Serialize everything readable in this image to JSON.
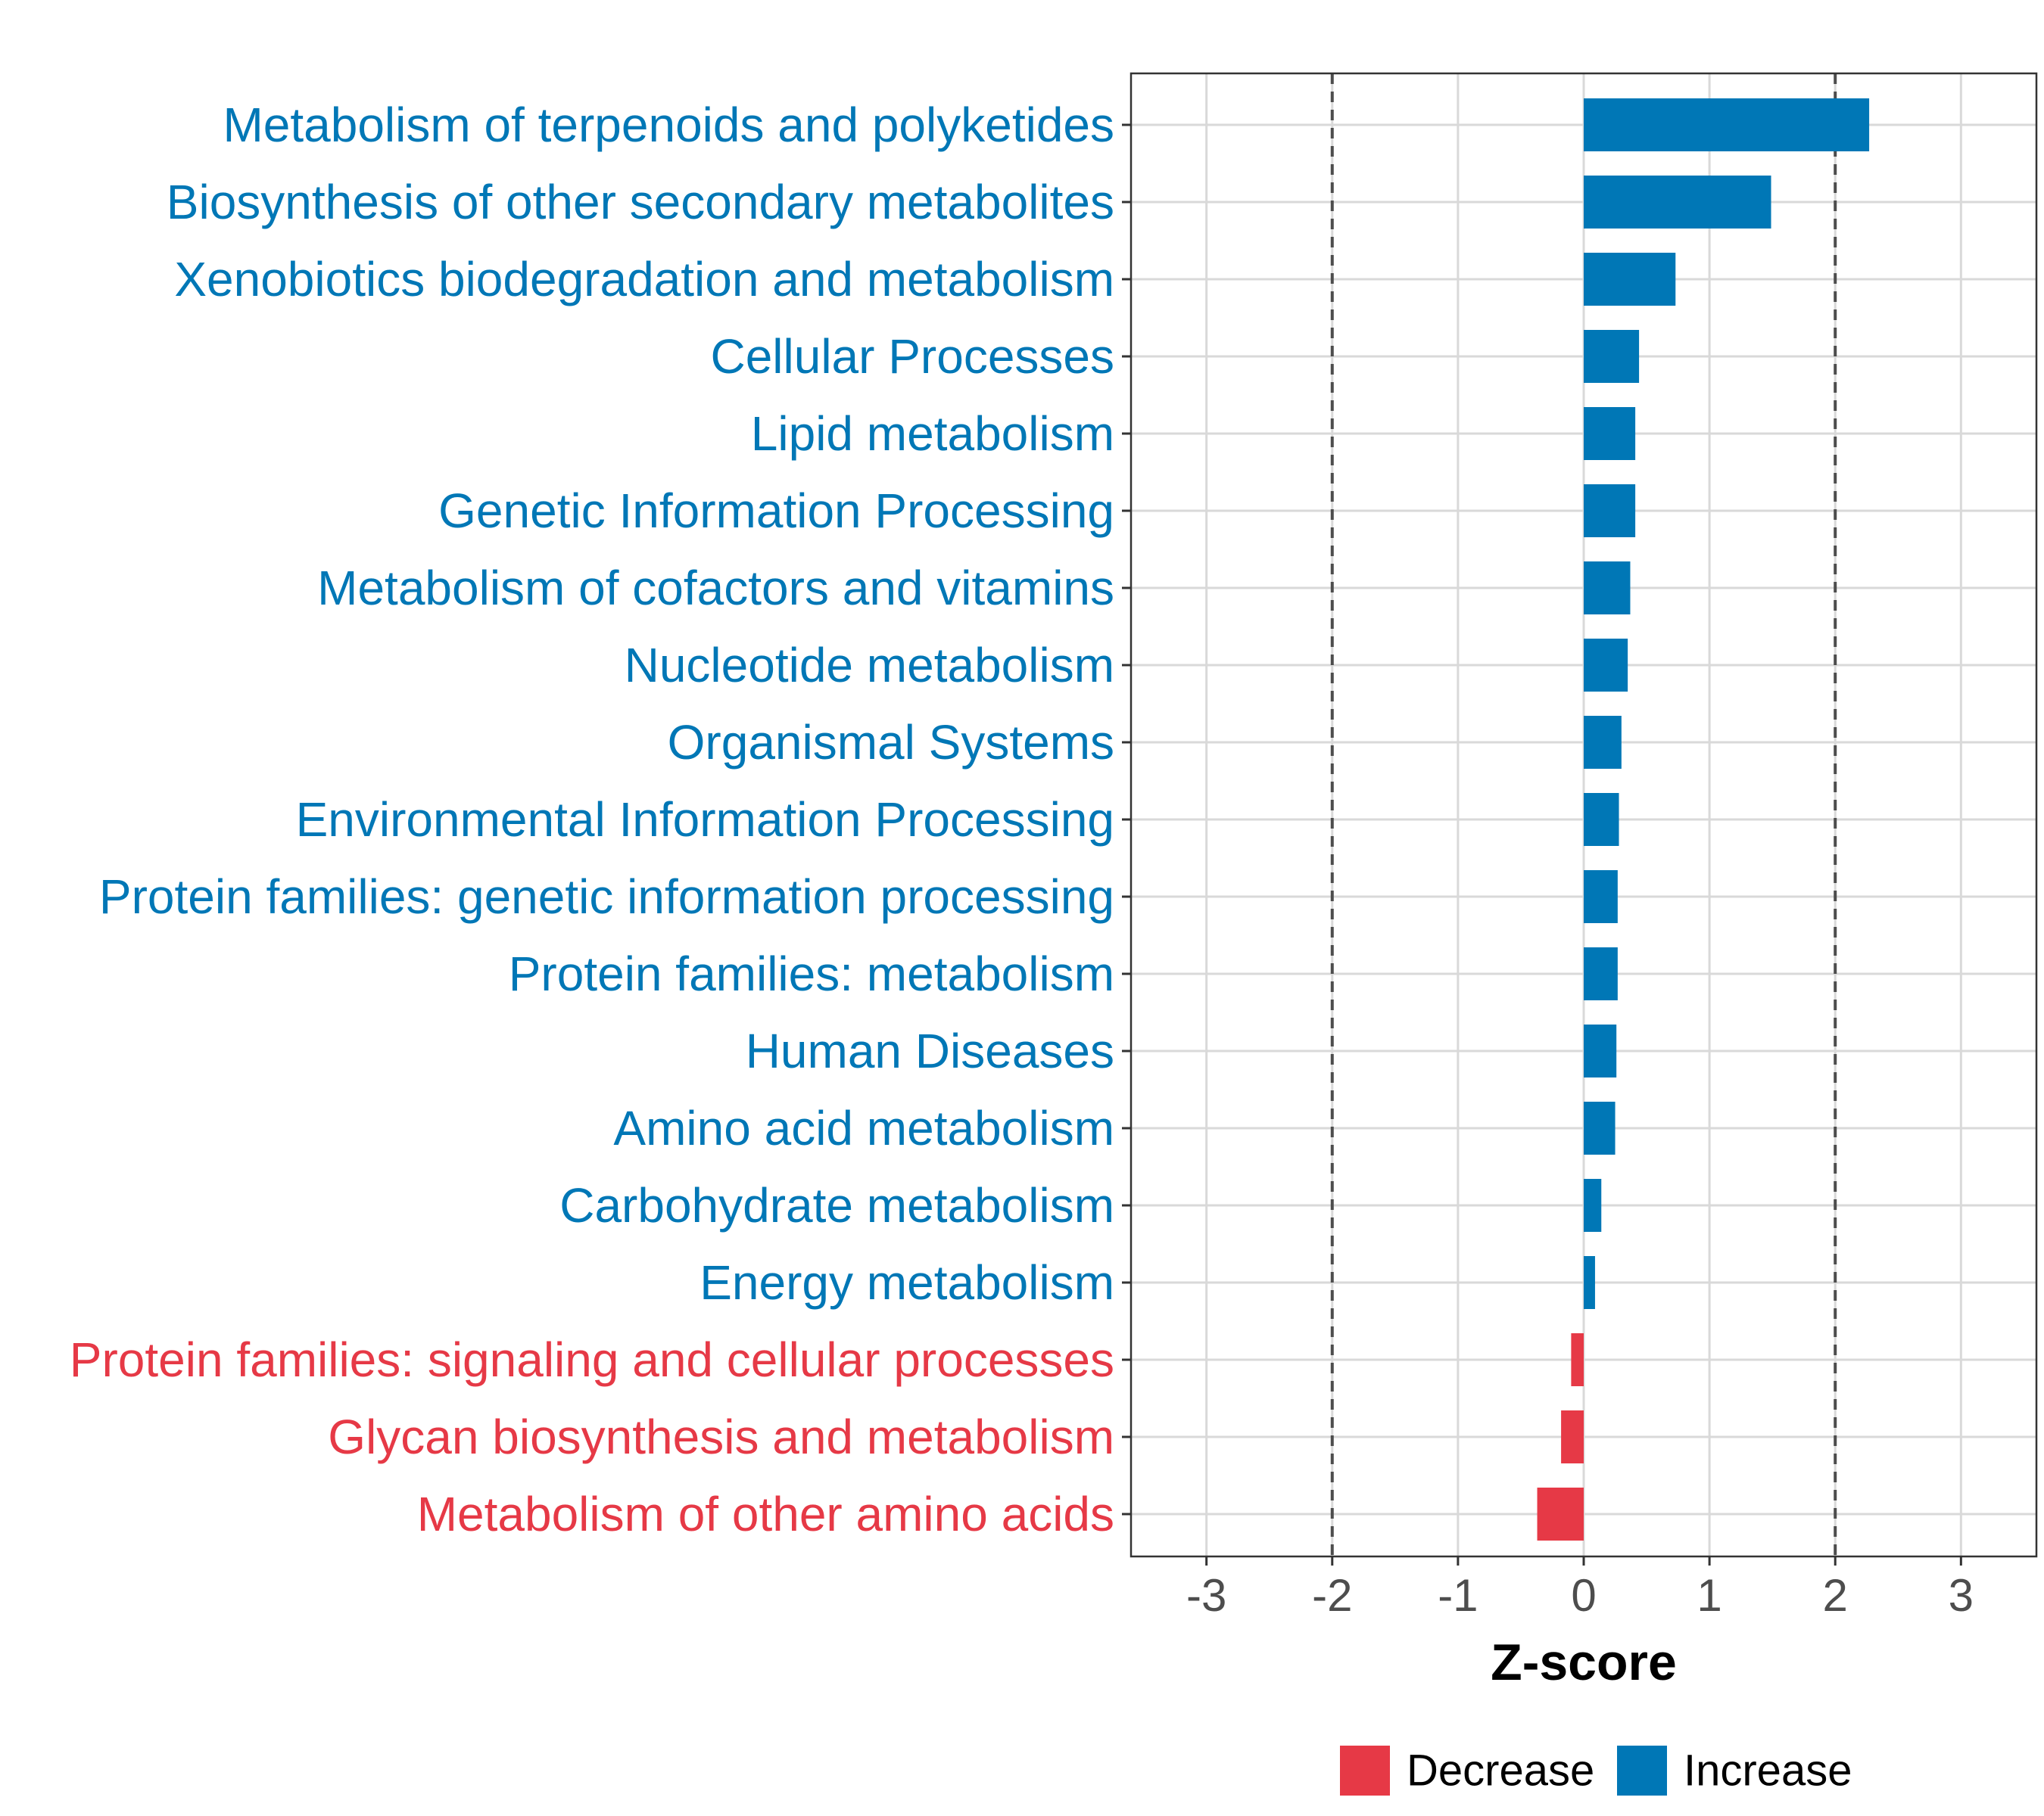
{
  "colors": {
    "increase": "#0077b6",
    "decrease": "#e63946",
    "grid": "#d9d9d9",
    "threshold": "#4d4d4d",
    "panel_border": "#333333"
  },
  "chart_data": {
    "type": "bar",
    "orientation": "horizontal",
    "title": "",
    "xlabel": "Z-score",
    "ylabel": "",
    "xlim": [
      -3.6,
      3.6
    ],
    "xticks": [
      -3,
      -2,
      -1,
      0,
      1,
      2,
      3
    ],
    "threshold_lines": [
      -2,
      2
    ],
    "grid": true,
    "legend_position": "bottom",
    "legend": [
      {
        "name": "Decrease",
        "color": "#e63946"
      },
      {
        "name": "Increase",
        "color": "#0077b6"
      }
    ],
    "categories": [
      "Metabolism of terpenoids and polyketides",
      "Biosynthesis of other secondary metabolites",
      "Xenobiotics biodegradation and metabolism",
      "Cellular Processes",
      "Lipid metabolism",
      "Genetic Information Processing",
      "Metabolism of cofactors and vitamins",
      "Nucleotide metabolism",
      "Organismal Systems",
      "Environmental Information Processing",
      "Protein families: genetic information processing",
      "Protein families: metabolism",
      "Human Diseases",
      "Amino acid metabolism",
      "Carbohydrate metabolism",
      "Energy metabolism",
      "Protein families: signaling and cellular processes",
      "Glycan biosynthesis and metabolism",
      "Metabolism of other amino acids"
    ],
    "values": [
      2.27,
      1.49,
      0.73,
      0.44,
      0.41,
      0.41,
      0.37,
      0.35,
      0.3,
      0.28,
      0.27,
      0.27,
      0.26,
      0.25,
      0.14,
      0.09,
      -0.1,
      -0.18,
      -0.37
    ],
    "groups": [
      "Increase",
      "Increase",
      "Increase",
      "Increase",
      "Increase",
      "Increase",
      "Increase",
      "Increase",
      "Increase",
      "Increase",
      "Increase",
      "Increase",
      "Increase",
      "Increase",
      "Increase",
      "Increase",
      "Decrease",
      "Decrease",
      "Decrease"
    ]
  }
}
